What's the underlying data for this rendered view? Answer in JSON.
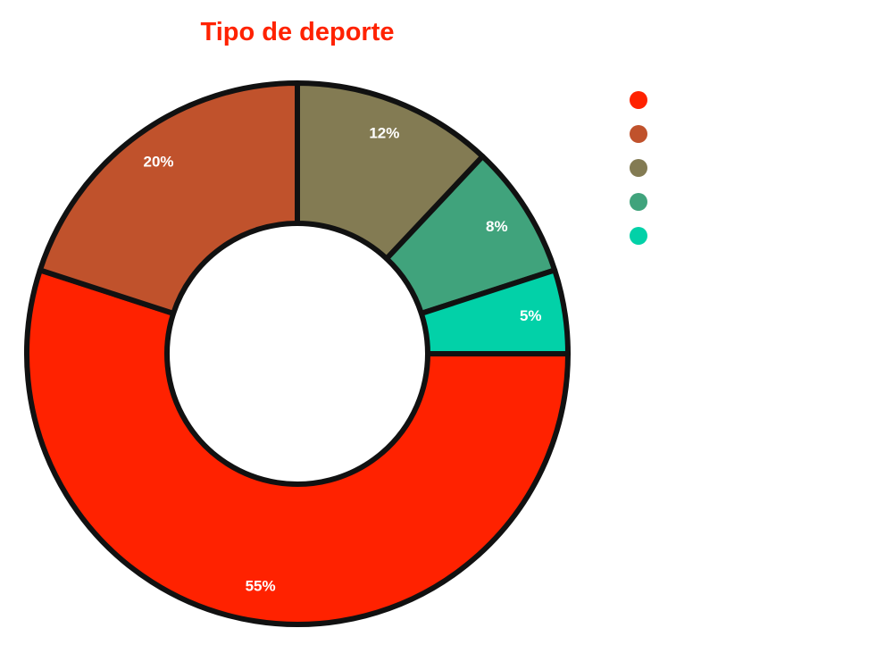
{
  "chart_data": {
    "type": "pie",
    "donut": true,
    "title": "Tipo de deporte",
    "title_color": "#ff2200",
    "slices": [
      {
        "label": "",
        "value": 55,
        "value_label": "55%",
        "color": "#ff2200"
      },
      {
        "label": "",
        "value": 20,
        "value_label": "20%",
        "color": "#c0522c"
      },
      {
        "label": "",
        "value": 12,
        "value_label": "12%",
        "color": "#837b53"
      },
      {
        "label": "",
        "value": 8,
        "value_label": "8%",
        "color": "#40a37c"
      },
      {
        "label": "",
        "value": 5,
        "value_label": "5%",
        "color": "#02d1a8"
      }
    ],
    "legend": {
      "position": "top-right"
    },
    "border_color": "#111111"
  }
}
